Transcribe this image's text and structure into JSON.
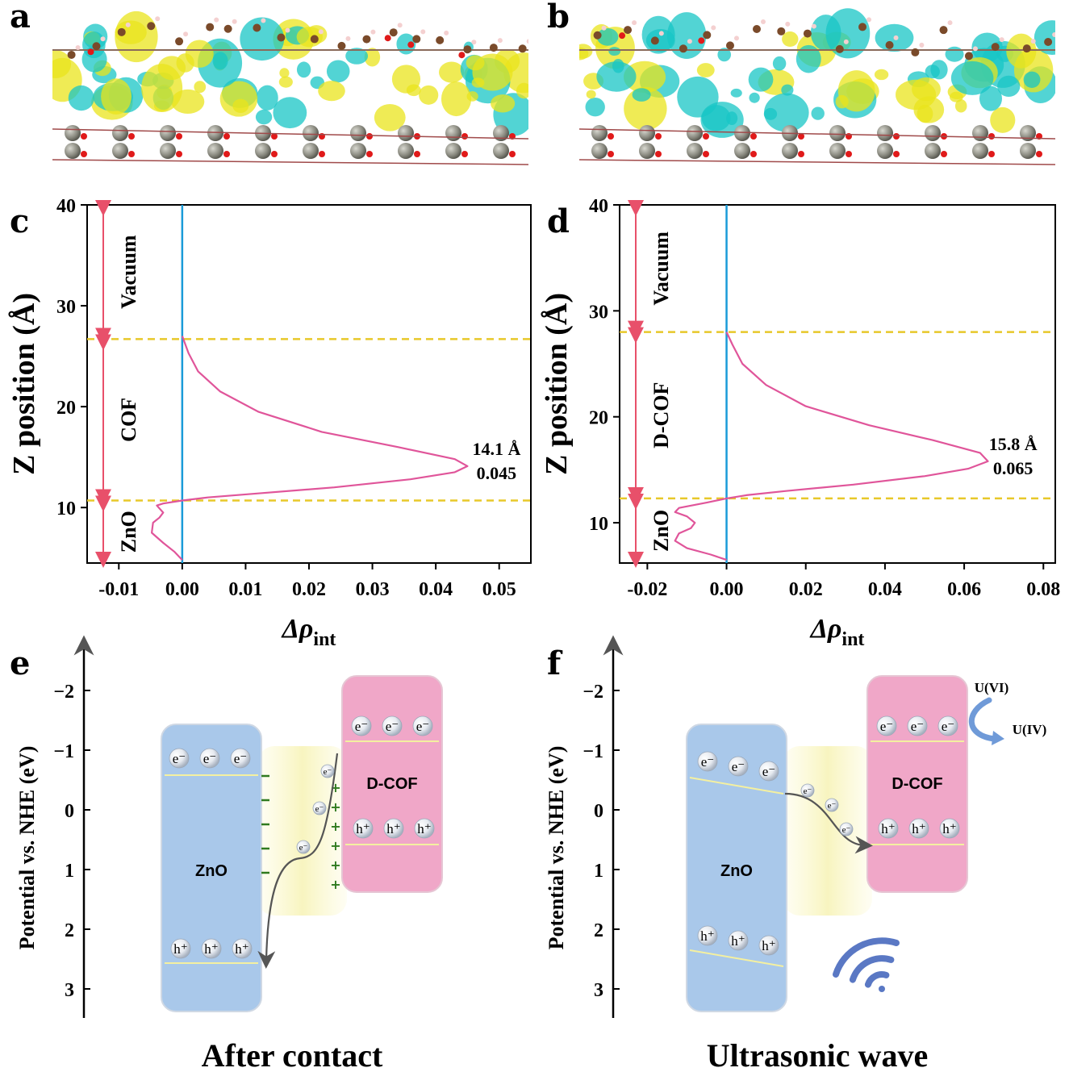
{
  "panels": {
    "a": {
      "letter": "a"
    },
    "b": {
      "letter": "b"
    },
    "c": {
      "letter": "c"
    },
    "d": {
      "letter": "d"
    },
    "e": {
      "letter": "e"
    },
    "f": {
      "letter": "f"
    }
  },
  "structure_colors": {
    "accumulation": "#e9e41c",
    "depletion": "#18c6c6",
    "zn": "#8a8a80",
    "o": "#e01a1a",
    "c": "#7a4a2a",
    "h": "#f4d0d0"
  },
  "chart_data": [
    {
      "id": "c",
      "type": "line",
      "xlabel": "Δρ",
      "xlabel_sub": "int",
      "ylabel": "Z position (Å)",
      "xlim": [
        -0.015,
        0.055
      ],
      "ylim": [
        4.5,
        40
      ],
      "xticks": [
        "-0.01",
        "0.00",
        "0.01",
        "0.02",
        "0.03",
        "0.04",
        "0.05"
      ],
      "xtick_values": [
        -0.01,
        0,
        0.01,
        0.02,
        0.03,
        0.04,
        0.05
      ],
      "yticks": [
        "10",
        "20",
        "30",
        "40"
      ],
      "ytick_values": [
        10,
        20,
        30,
        40
      ],
      "series": [
        {
          "color": "#e0559a",
          "x": [
            0,
            -0.0012,
            -0.003,
            -0.0048,
            -0.0046,
            -0.0036,
            -0.003,
            -0.004,
            -0.003,
            0,
            0.004,
            0.012,
            0.024,
            0.036,
            0.043,
            0.045,
            0.043,
            0.034,
            0.022,
            0.012,
            0.006,
            0.0025,
            0.001,
            0
          ],
          "y": [
            4.8,
            5.6,
            6.5,
            7.5,
            8.5,
            9.0,
            9.5,
            10.2,
            10.4,
            10.7,
            11.0,
            11.4,
            12.0,
            12.8,
            13.5,
            14.1,
            14.8,
            16.0,
            17.5,
            19.5,
            21.5,
            23.5,
            25.3,
            27.0
          ]
        }
      ],
      "zero_line_color": "#1a9bd8",
      "boundaries": [
        10.7,
        26.7
      ],
      "boundary_color": "#e8c82a",
      "regions": [
        {
          "label": "Vacuum",
          "from": 26.7,
          "to": 40
        },
        {
          "label": "COF",
          "from": 10.7,
          "to": 26.7
        },
        {
          "label": "ZnO",
          "from": 4.5,
          "to": 10.7
        }
      ],
      "annotation": {
        "line1": "14.1 Å",
        "line2": "0.045",
        "x": 0.045,
        "y": 14.1
      }
    },
    {
      "id": "d",
      "type": "line",
      "xlabel": "Δρ",
      "xlabel_sub": "int",
      "ylabel": "Z position (Å)",
      "xlim": [
        -0.027,
        0.083
      ],
      "ylim": [
        6.2,
        40
      ],
      "xticks": [
        "-0.02",
        "0.00",
        "0.02",
        "0.04",
        "0.06",
        "0.08"
      ],
      "xtick_values": [
        -0.02,
        0,
        0.02,
        0.04,
        0.06,
        0.08
      ],
      "yticks": [
        "10",
        "20",
        "30",
        "40"
      ],
      "ytick_values": [
        10,
        20,
        30,
        40
      ],
      "series": [
        {
          "color": "#e0559a",
          "x": [
            0,
            -0.004,
            -0.01,
            -0.013,
            -0.012,
            -0.009,
            -0.008,
            -0.01,
            -0.013,
            -0.012,
            -0.005,
            0,
            0.005,
            0.015,
            0.032,
            0.05,
            0.061,
            0.066,
            0.064,
            0.052,
            0.036,
            0.02,
            0.01,
            0.004,
            0.0015,
            0
          ],
          "y": [
            6.5,
            7.0,
            7.6,
            8.3,
            9.0,
            9.5,
            10.0,
            10.6,
            11.0,
            11.4,
            11.9,
            12.3,
            12.6,
            13.0,
            13.6,
            14.4,
            15.1,
            15.8,
            16.6,
            17.8,
            19.2,
            21.0,
            23.0,
            25.0,
            26.8,
            28.0
          ]
        }
      ],
      "zero_line_color": "#1a9bd8",
      "boundaries": [
        12.3,
        28.0
      ],
      "boundary_color": "#e8c82a",
      "regions": [
        {
          "label": "Vacuum",
          "from": 28.0,
          "to": 40
        },
        {
          "label": "D-COF",
          "from": 12.3,
          "to": 28.0
        },
        {
          "label": "ZnO",
          "from": 6.2,
          "to": 12.3
        }
      ],
      "annotation": {
        "line1": "15.8 Å",
        "line2": "0.065",
        "x": 0.065,
        "y": 15.8
      }
    }
  ],
  "band_diagrams": {
    "ylabel": "Potential vs. NHE (eV)",
    "yticks": [
      "−2",
      "−1",
      "0",
      "1",
      "2",
      "3"
    ],
    "ytick_values": [
      -2,
      -1,
      0,
      1,
      2,
      3
    ],
    "zno_color": "#a9c8ea",
    "dcof_color": "#f0a7c8",
    "e": {
      "caption": "After contact",
      "zno_label": "ZnO",
      "dcof_label": "D-COF",
      "cb_carriers": [
        "e⁻",
        "e⁻",
        "e⁻"
      ],
      "vb_carriers": [
        "h⁺",
        "h⁺",
        "h⁺"
      ],
      "dcof_cb_carriers": [
        "e⁻",
        "e⁻",
        "e⁻"
      ],
      "dcof_vb_carriers": [
        "h⁺",
        "h⁺",
        "h⁺"
      ],
      "transfer_electrons": [
        "e⁻",
        "e⁻",
        "e⁻"
      ],
      "minus_signs": 5,
      "plus_signs": 6
    },
    "f": {
      "caption": "Ultrasonic wave",
      "zno_label": "ZnO",
      "dcof_label": "D-COF",
      "cb_carriers": [
        "e⁻",
        "e⁻",
        "e⁻"
      ],
      "vb_carriers": [
        "h⁺",
        "h⁺",
        "h⁺"
      ],
      "dcof_cb_carriers": [
        "e⁻",
        "e⁻",
        "e⁻"
      ],
      "dcof_vb_carriers": [
        "h⁺",
        "h⁺",
        "h⁺"
      ],
      "transfer_electrons": [
        "e⁻",
        "e⁻",
        "e⁻"
      ],
      "u_ox": "U(VI)",
      "u_red": "U(IV)"
    }
  }
}
